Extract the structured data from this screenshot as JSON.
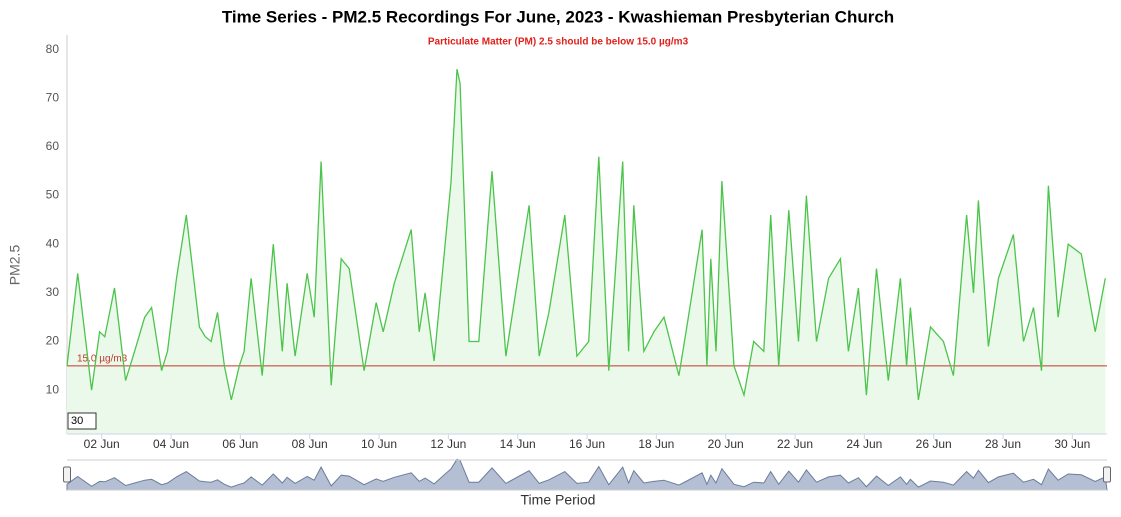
{
  "chart_data": {
    "type": "area",
    "title": "Time Series - PM2.5 Recordings For June, 2023 - Kwashieman Presbyterian Church",
    "subtitle": "Particulate Matter (PM) 2.5 should be below 15.0 µg/m3",
    "y_label": "PM2.5",
    "x_label": "Time Period",
    "range_input": "30",
    "color": "#4cc44c",
    "fill": "#eaf9ea",
    "x": [
      1.0,
      1.31,
      1.71,
      1.94,
      2.09,
      2.37,
      2.69,
      2.95,
      3.24,
      3.44,
      3.73,
      3.9,
      4.16,
      4.44,
      4.82,
      4.99,
      5.16,
      5.34,
      5.54,
      5.74,
      5.97,
      6.11,
      6.31,
      6.63,
      6.95,
      7.21,
      7.35,
      7.58,
      7.93,
      8.13,
      8.33,
      8.62,
      8.91,
      9.14,
      9.57,
      9.92,
      10.12,
      10.44,
      10.93,
      11.16,
      11.33,
      11.59,
      12.08,
      12.25,
      12.34,
      12.6,
      12.88,
      13.26,
      13.66,
      14.33,
      14.62,
      14.9,
      15.36,
      15.71,
      16.05,
      16.34,
      16.63,
      17.03,
      17.2,
      17.35,
      17.64,
      17.93,
      18.22,
      18.65,
      18.88,
      19.32,
      19.46,
      19.57,
      19.72,
      19.89,
      20.24,
      20.53,
      20.81,
      21.1,
      21.3,
      21.53,
      21.82,
      22.1,
      22.33,
      22.62,
      22.97,
      23.31,
      23.54,
      23.83,
      24.06,
      24.35,
      24.69,
      25.04,
      25.22,
      25.33,
      25.56,
      25.91,
      26.28,
      26.57,
      26.95,
      27.15,
      27.29,
      27.58,
      27.87,
      28.3,
      28.59,
      28.88,
      29.11,
      29.31,
      29.59,
      29.88,
      30.26,
      30.66,
      30.95
    ],
    "values": [
      15,
      34,
      10,
      22,
      21,
      31,
      12,
      18,
      25,
      27,
      14,
      18,
      33,
      46,
      23,
      21,
      20,
      26,
      15,
      8,
      15,
      18,
      33,
      13,
      40,
      18,
      32,
      17,
      34,
      25,
      57,
      11,
      37,
      35,
      14,
      28,
      22,
      32,
      43,
      22,
      30,
      16,
      53,
      76,
      73,
      20,
      20,
      55,
      17,
      48,
      17,
      26,
      46,
      17,
      20,
      58,
      14,
      57,
      18,
      48,
      18,
      22,
      25,
      13,
      23,
      43,
      15,
      37,
      18,
      53,
      15,
      9,
      20,
      18,
      46,
      15,
      47,
      20,
      50,
      20,
      33,
      37,
      18,
      31,
      9,
      35,
      12,
      33,
      15,
      27,
      8,
      23,
      20,
      13,
      46,
      30,
      49,
      19,
      33,
      42,
      20,
      27,
      14,
      52,
      25,
      40,
      38,
      22,
      33
    ],
    "xlim": [
      1,
      31
    ],
    "xticks": [
      {
        "value": 2,
        "label": "02 Jun"
      },
      {
        "value": 4,
        "label": "04 Jun"
      },
      {
        "value": 6,
        "label": "06 Jun"
      },
      {
        "value": 8,
        "label": "08 Jun"
      },
      {
        "value": 10,
        "label": "10 Jun"
      },
      {
        "value": 12,
        "label": "12 Jun"
      },
      {
        "value": 14,
        "label": "14 Jun"
      },
      {
        "value": 16,
        "label": "16 Jun"
      },
      {
        "value": 18,
        "label": "18 Jun"
      },
      {
        "value": 20,
        "label": "20 Jun"
      },
      {
        "value": 22,
        "label": "22 Jun"
      },
      {
        "value": 24,
        "label": "24 Jun"
      },
      {
        "value": 26,
        "label": "26 Jun"
      },
      {
        "value": 28,
        "label": "28 Jun"
      },
      {
        "value": 30,
        "label": "30 Jun"
      }
    ],
    "ylim": [
      1,
      83
    ],
    "yticks": [
      10,
      20,
      30,
      40,
      50,
      60,
      70,
      80
    ],
    "plot_lines": [
      {
        "value": 15,
        "label": "15.0 µg/m3",
        "color": "#c0392b"
      }
    ]
  }
}
